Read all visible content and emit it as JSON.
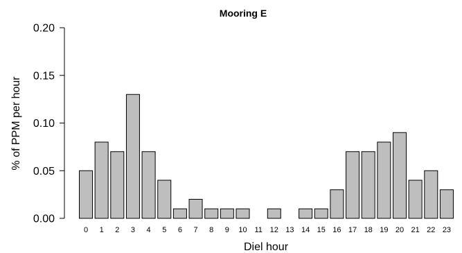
{
  "chart_data": {
    "type": "bar",
    "title": "Mooring E",
    "xlabel": "Diel hour",
    "ylabel": "% of PPM per hour",
    "categories": [
      "0",
      "1",
      "2",
      "3",
      "4",
      "5",
      "6",
      "7",
      "8",
      "9",
      "10",
      "11",
      "12",
      "13",
      "14",
      "15",
      "16",
      "17",
      "18",
      "19",
      "20",
      "21",
      "22",
      "23"
    ],
    "values": [
      0.05,
      0.08,
      0.07,
      0.13,
      0.07,
      0.04,
      0.01,
      0.02,
      0.01,
      0.01,
      0.01,
      0.0,
      0.01,
      0.0,
      0.01,
      0.01,
      0.03,
      0.07,
      0.07,
      0.08,
      0.09,
      0.04,
      0.05,
      0.03
    ],
    "yticks": [
      "0.00",
      "0.05",
      "0.10",
      "0.15",
      "0.20"
    ],
    "ylim": [
      0,
      0.2
    ],
    "grid": false,
    "legend": "none",
    "bar_color": "#bebebe",
    "edge_color": "#000000"
  }
}
